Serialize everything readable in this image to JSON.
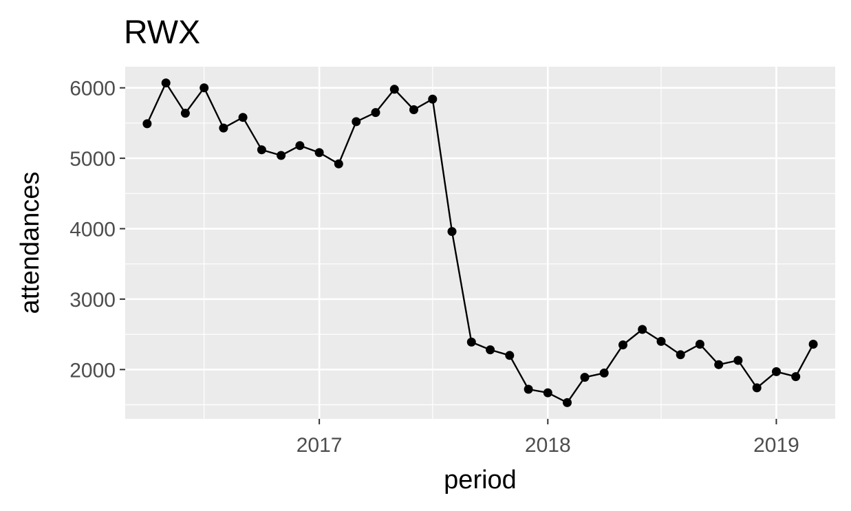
{
  "chart_data": {
    "type": "line",
    "title": "RWX",
    "xlabel": "period",
    "ylabel": "attendances",
    "x_unit": "month",
    "x": [
      "2016-04",
      "2016-05",
      "2016-06",
      "2016-07",
      "2016-08",
      "2016-09",
      "2016-10",
      "2016-11",
      "2016-12",
      "2017-01",
      "2017-02",
      "2017-03",
      "2017-04",
      "2017-05",
      "2017-06",
      "2017-07",
      "2017-08",
      "2017-09",
      "2017-10",
      "2017-11",
      "2017-12",
      "2018-01",
      "2018-02",
      "2018-03",
      "2018-04",
      "2018-05",
      "2018-06",
      "2018-07",
      "2018-08",
      "2018-09",
      "2018-10",
      "2018-11",
      "2018-12",
      "2019-01",
      "2019-02",
      "2019-03"
    ],
    "series": [
      {
        "values": [
          5490,
          6070,
          5640,
          6000,
          5430,
          5580,
          5120,
          5040,
          5180,
          5080,
          4920,
          5520,
          5650,
          5980,
          5690,
          5840,
          3960,
          2390,
          2280,
          2200,
          1720,
          1670,
          1530,
          1890,
          1950,
          2350,
          2570,
          2400,
          2210,
          2360,
          2070,
          2130,
          1740,
          1970,
          1900,
          2360
        ]
      }
    ],
    "xlim": [
      "2016-02-26",
      "2019-04-05"
    ],
    "ylim": [
      1300,
      6300
    ],
    "x_ticks": [
      {
        "value": "2017-01",
        "label": "2017"
      },
      {
        "value": "2018-01",
        "label": "2018"
      },
      {
        "value": "2019-01",
        "label": "2019"
      }
    ],
    "x_minor_ticks": [
      "2016-07",
      "2017-07",
      "2018-07"
    ],
    "y_ticks": [
      {
        "value": 2000,
        "label": "2000"
      },
      {
        "value": 3000,
        "label": "3000"
      },
      {
        "value": 4000,
        "label": "4000"
      },
      {
        "value": 5000,
        "label": "5000"
      },
      {
        "value": 6000,
        "label": "6000"
      }
    ],
    "y_minor_ticks": [
      1500,
      2500,
      3500,
      4500,
      5500
    ],
    "grid": true,
    "legend": "none",
    "colors": {
      "panel_background": "#ebebeb",
      "grid": "#ffffff",
      "line": "#000000",
      "points": "#000000",
      "tick_text": "#4d4d4d",
      "axis_ticks": "#333333"
    }
  }
}
